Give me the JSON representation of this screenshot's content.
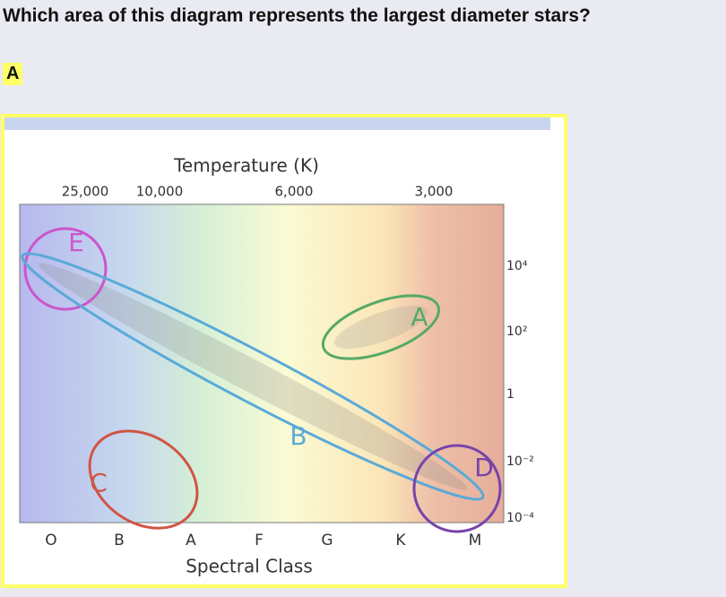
{
  "question": "Which area of this diagram represents the largest diameter stars?",
  "answer": "A",
  "diagram": {
    "title": "Temperature (K)",
    "temperature_ticks": [
      "25,000",
      "10,000",
      "6,000",
      "3,000"
    ],
    "luminosity_ticks": [
      "10⁴",
      "10²",
      "1",
      "10⁻²",
      "10⁻⁴"
    ],
    "spectral_classes": [
      "O",
      "B",
      "A",
      "F",
      "G",
      "K",
      "M"
    ],
    "x_title": "Spectral Class",
    "regions": [
      "E",
      "A",
      "B",
      "C",
      "D"
    ]
  }
}
